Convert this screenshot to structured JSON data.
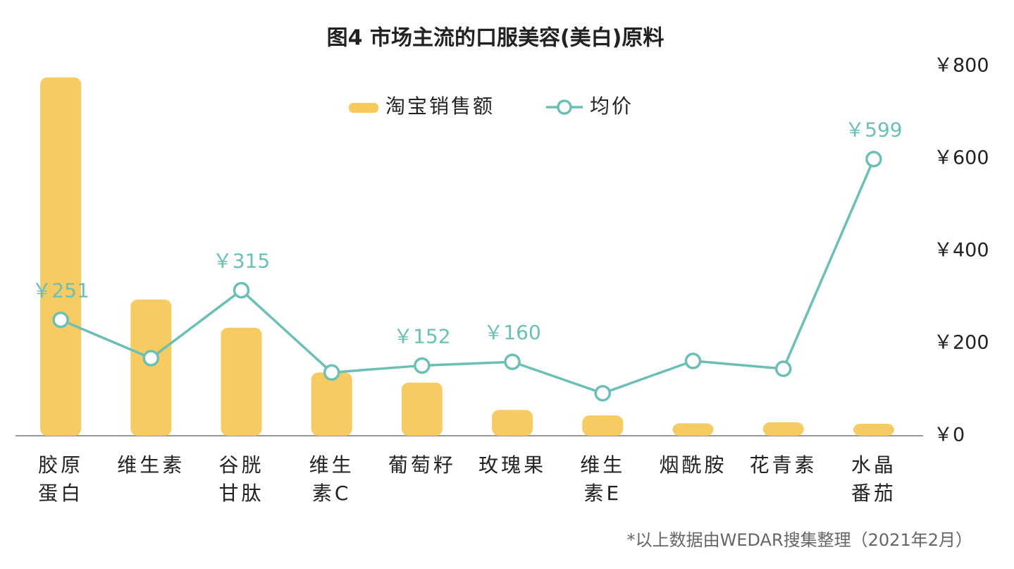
{
  "chart_data": {
    "type": "bar-line",
    "title": "图4 市场主流的口服美容(美白)原料",
    "categories": [
      "胶原\n蛋白",
      "维生素",
      "谷胱\n甘肽",
      "维生\n素C",
      "葡萄籽",
      "玫瑰果",
      "维生\n素E",
      "烟酰胺",
      "花青素",
      "水晶\n番茄"
    ],
    "series": [
      {
        "name": "淘宝销售额",
        "type": "bar",
        "color": "#f5c95a",
        "values": [
          776,
          295,
          234,
          137,
          115,
          56,
          44,
          27,
          29,
          26
        ]
      },
      {
        "name": "均价",
        "type": "line",
        "color": "#6bbfb5",
        "values": [
          251,
          168,
          315,
          137,
          152,
          160,
          92,
          162,
          145,
          599
        ],
        "value_labels": [
          "￥251",
          null,
          "￥315",
          null,
          "￥152",
          "￥160",
          null,
          null,
          null,
          "￥599"
        ]
      }
    ],
    "ylim": [
      0,
      800
    ],
    "yticks": [
      {
        "value": 0,
        "label": "￥0"
      },
      {
        "value": 200,
        "label": "￥200"
      },
      {
        "value": 400,
        "label": "￥400"
      },
      {
        "value": 600,
        "label": "￥600"
      },
      {
        "value": 800,
        "label": "￥800"
      }
    ],
    "yaxis_side": "right",
    "footnote": "*以上数据由WEDAR搜集整理（2021年2月）"
  }
}
